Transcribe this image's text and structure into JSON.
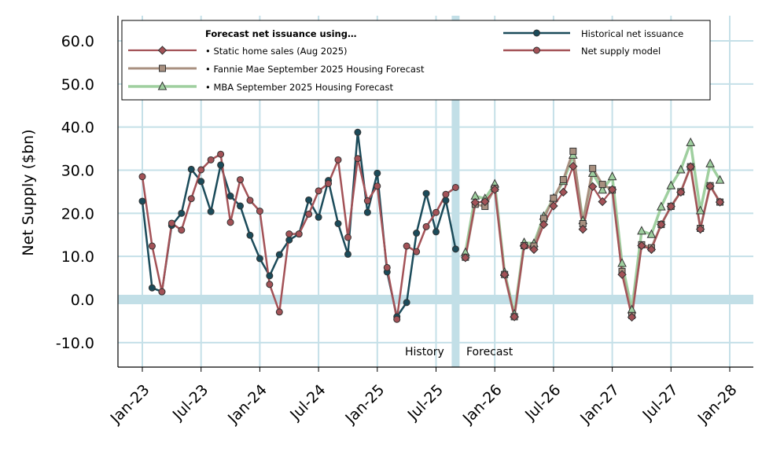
{
  "chart_data": {
    "type": "line",
    "title": "",
    "xlabel": "",
    "ylabel": "Net Supply ($bn)",
    "ylim": [
      -15.5,
      66
    ],
    "x_range_months": [
      -1.5,
      63
    ],
    "yticks": [
      -10,
      0,
      10,
      20,
      30,
      40,
      50,
      60
    ],
    "ytick_labels": [
      "-10.0",
      "0.0",
      "10.0",
      "20.0",
      "30.0",
      "40.0",
      "50.0",
      "60.0"
    ],
    "xticks_month_index": [
      0,
      6,
      12,
      18,
      24,
      30,
      36,
      42,
      48,
      54,
      60
    ],
    "xtick_labels": [
      "Jan-23",
      "Jul-23",
      "Jan-24",
      "Jul-24",
      "Jan-25",
      "Jul-25",
      "Jan-26",
      "Jul-26",
      "Jan-27",
      "Jul-27",
      "Jan-28"
    ],
    "grid": true,
    "divider_month_index": 32.0,
    "annotations": {
      "history": "History",
      "forecast": "Forecast"
    },
    "legend": {
      "placement": "top",
      "title": "Forecast net issuance using…",
      "entries": [
        {
          "label": "• Static home sales (Aug 2025)",
          "series": "static",
          "marker": "diamond"
        },
        {
          "label": "• Fannie Mae September 2025 Housing Forecast",
          "series": "fannie",
          "marker": "square"
        },
        {
          "label": "• MBA September 2025 Housing Forecast",
          "series": "mba",
          "marker": "triangle"
        },
        {
          "label": "Historical net issuance",
          "series": "historical",
          "marker": "circle"
        },
        {
          "label": "Net supply model",
          "series": "model",
          "marker": "circle"
        }
      ]
    },
    "series": [
      {
        "key": "historical",
        "name": "Historical net issuance",
        "color": "#1b4b5a",
        "marker": "circle",
        "start_month": 0,
        "values": [
          22.8,
          2.7,
          1.8,
          17.2,
          20.0,
          30.2,
          27.4,
          20.4,
          31.2,
          24.0,
          21.7,
          14.9,
          9.5,
          5.5,
          10.4,
          13.8,
          15.2,
          23.1,
          19.1,
          27.6,
          17.6,
          10.5,
          38.8,
          20.2,
          29.3,
          6.4,
          -4.0,
          -0.7,
          15.4,
          24.6,
          15.7,
          23.0,
          11.7
        ]
      },
      {
        "key": "model",
        "name": "Net supply model",
        "color": "#a35257",
        "marker": "circle",
        "start_month": 0,
        "values": [
          28.5,
          12.4,
          1.8,
          17.7,
          16.1,
          23.4,
          30.1,
          32.4,
          33.7,
          17.9,
          27.8,
          23.0,
          20.5,
          3.5,
          -2.9,
          15.2,
          15.2,
          19.8,
          25.2,
          26.9,
          32.4,
          14.4,
          32.7,
          22.9,
          26.3,
          7.4,
          -4.6,
          12.4,
          11.1,
          16.9,
          20.2,
          24.4,
          26.0
        ]
      },
      {
        "key": "mba",
        "name": "• MBA September 2025 Housing Forecast",
        "color": "#9fcf9f",
        "marker": "triangle",
        "start_month": 33,
        "values": [
          10.9,
          24.0,
          23.4,
          26.8,
          6.3,
          -3.4,
          13.2,
          13.0,
          19.3,
          23.5,
          27.4,
          33.5,
          18.3,
          29.3,
          25.4,
          28.5,
          8.4,
          -2.4,
          15.9,
          15.1,
          21.5,
          26.4,
          30.1,
          36.4,
          20.6,
          31.5,
          27.7
        ]
      },
      {
        "key": "fannie",
        "name": "• Fannie Mae September 2025 Housing Forecast",
        "color": "#a89080",
        "marker": "square",
        "start_month": 33,
        "values": [
          9.8,
          22.1,
          21.6,
          25.8,
          5.8,
          -4.0,
          12.5,
          12.4,
          18.8,
          23.5,
          27.8,
          34.4,
          17.6,
          30.4,
          26.7,
          25.4,
          6.5,
          -3.7,
          12.7,
          12.0,
          17.4,
          21.6,
          25.0,
          30.8,
          16.5,
          26.4,
          22.6
        ]
      },
      {
        "key": "static",
        "name": "• Static home sales (Aug 2025)",
        "color": "#a35257",
        "marker": "diamond",
        "start_month": 33,
        "values": [
          9.7,
          22.5,
          22.7,
          25.5,
          5.8,
          -4.0,
          12.4,
          11.6,
          17.4,
          21.7,
          24.9,
          30.9,
          16.3,
          26.2,
          22.7,
          25.5,
          5.8,
          -4.1,
          12.5,
          11.6,
          17.4,
          21.6,
          24.9,
          30.8,
          16.3,
          26.3,
          22.6
        ]
      }
    ]
  }
}
